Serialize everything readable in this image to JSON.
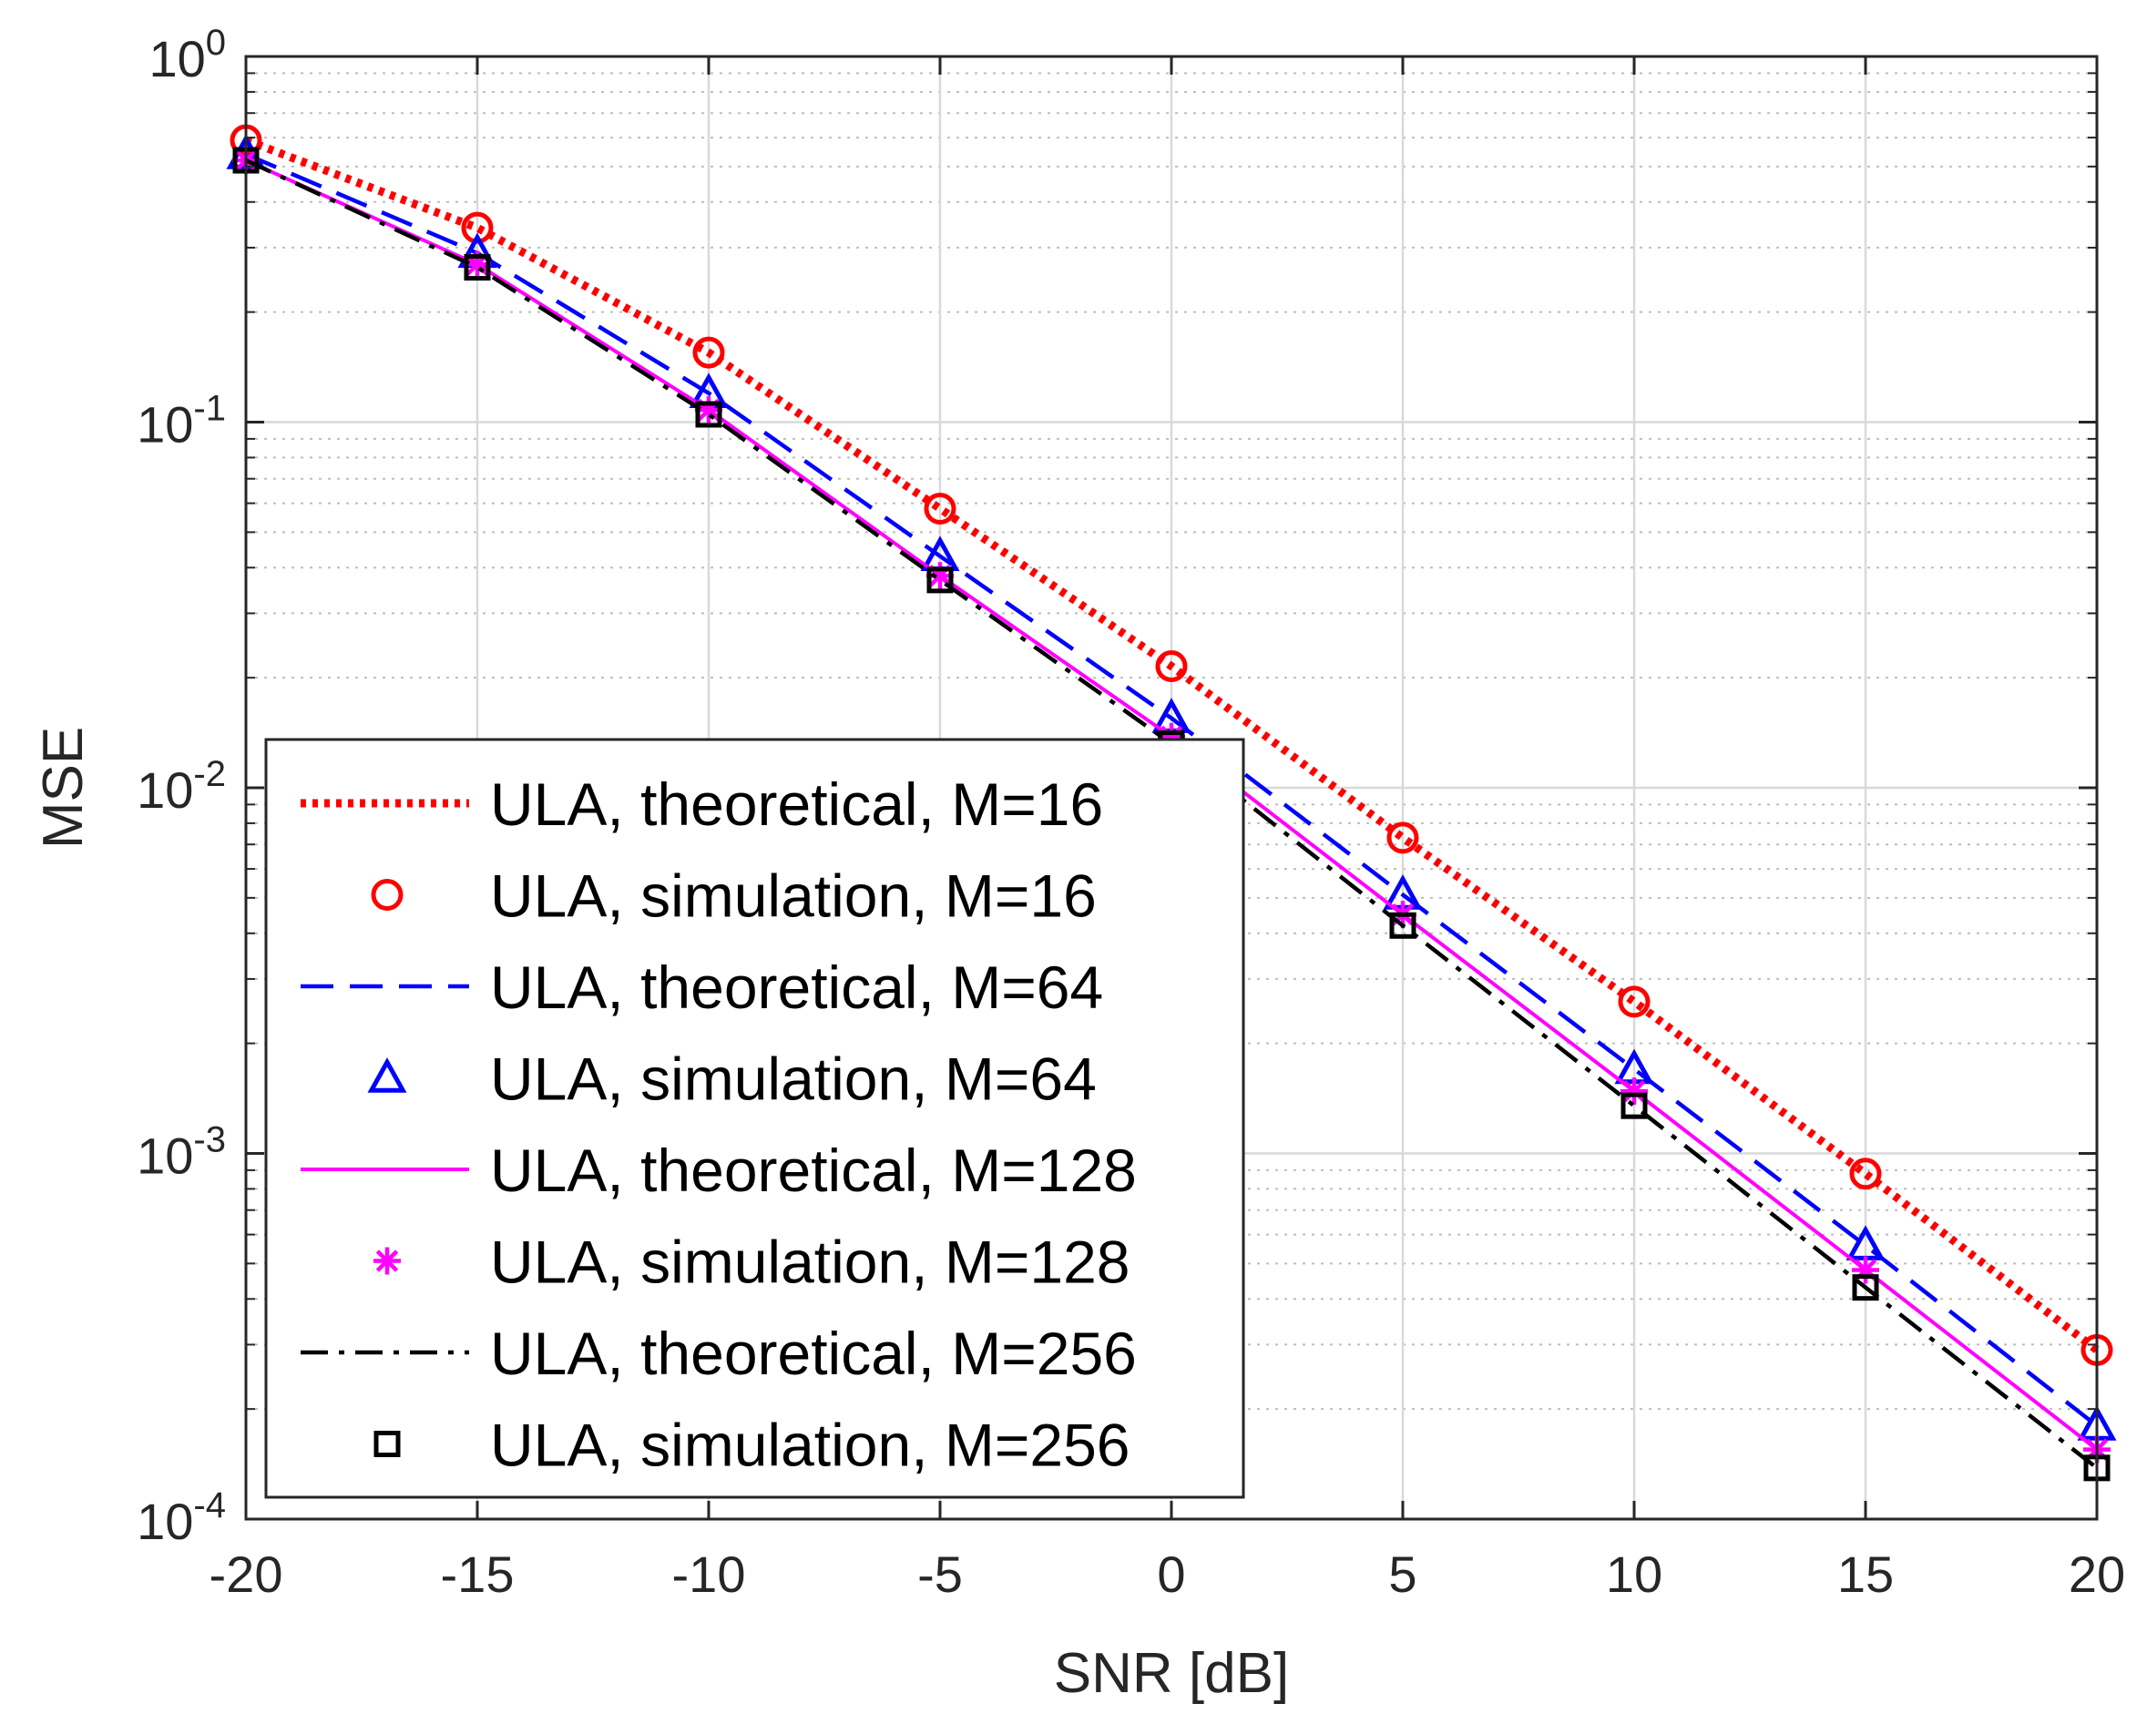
{
  "chart_data": {
    "type": "line",
    "title": "",
    "xlabel": "SNR [dB]",
    "ylabel": "MSE",
    "yscale": "log",
    "xlim": [
      -20,
      20
    ],
    "ylim": [
      0.0001,
      1
    ],
    "grid": true,
    "minor_grid": true,
    "legend_position": "bottom-left",
    "x_ticks": [
      "-20",
      "-15",
      "-10",
      "-5",
      "0",
      "5",
      "10",
      "15",
      "20"
    ],
    "y_ticks": [
      {
        "base": "10",
        "exp": "0"
      },
      {
        "base": "10",
        "exp": "-1"
      },
      {
        "base": "10",
        "exp": "-2"
      },
      {
        "base": "10",
        "exp": "-3"
      },
      {
        "base": "10",
        "exp": "-4"
      }
    ],
    "x": [
      -20,
      -15,
      -10,
      -5,
      0,
      5,
      10,
      15,
      20
    ],
    "series": [
      {
        "name": "ULA, theoretical, M=16",
        "kind": "line",
        "style": "dotted",
        "color": "#ff0000",
        "values": [
          0.59,
          0.34,
          0.155,
          0.058,
          0.0215,
          0.0073,
          0.0026,
          0.00088,
          0.00029
        ]
      },
      {
        "name": "ULA, simulation, M=16",
        "kind": "marker",
        "marker": "circle",
        "color": "#ff0000",
        "values": [
          0.59,
          0.34,
          0.155,
          0.058,
          0.0215,
          0.0073,
          0.0026,
          0.00088,
          0.00029
        ]
      },
      {
        "name": "ULA, theoretical, M=64",
        "kind": "line",
        "style": "dashed",
        "color": "#0000ff",
        "values": [
          0.54,
          0.29,
          0.12,
          0.043,
          0.0155,
          0.0051,
          0.0017,
          0.00056,
          0.00018
        ]
      },
      {
        "name": "ULA, simulation, M=64",
        "kind": "marker",
        "marker": "triangle",
        "color": "#0000ff",
        "values": [
          0.54,
          0.29,
          0.12,
          0.043,
          0.0155,
          0.0051,
          0.0017,
          0.00056,
          0.00018
        ]
      },
      {
        "name": "ULA, theoretical, M=128",
        "kind": "line",
        "style": "solid",
        "color": "#ff00ff",
        "values": [
          0.52,
          0.27,
          0.108,
          0.038,
          0.0138,
          0.0045,
          0.00148,
          0.00048,
          0.000155
        ]
      },
      {
        "name": "ULA, simulation, M=128",
        "kind": "marker",
        "marker": "asterisk",
        "color": "#ff00ff",
        "values": [
          0.52,
          0.27,
          0.108,
          0.038,
          0.0138,
          0.0045,
          0.00148,
          0.00048,
          0.000155
        ]
      },
      {
        "name": "ULA, theoretical, M=256",
        "kind": "line",
        "style": "dashdot",
        "color": "#000000",
        "values": [
          0.52,
          0.265,
          0.105,
          0.037,
          0.0132,
          0.0042,
          0.00135,
          0.00043,
          0.000138
        ]
      },
      {
        "name": "ULA, simulation, M=256",
        "kind": "marker",
        "marker": "square",
        "color": "#000000",
        "values": [
          0.52,
          0.265,
          0.105,
          0.037,
          0.0132,
          0.0042,
          0.00135,
          0.00043,
          0.000138
        ]
      }
    ]
  }
}
